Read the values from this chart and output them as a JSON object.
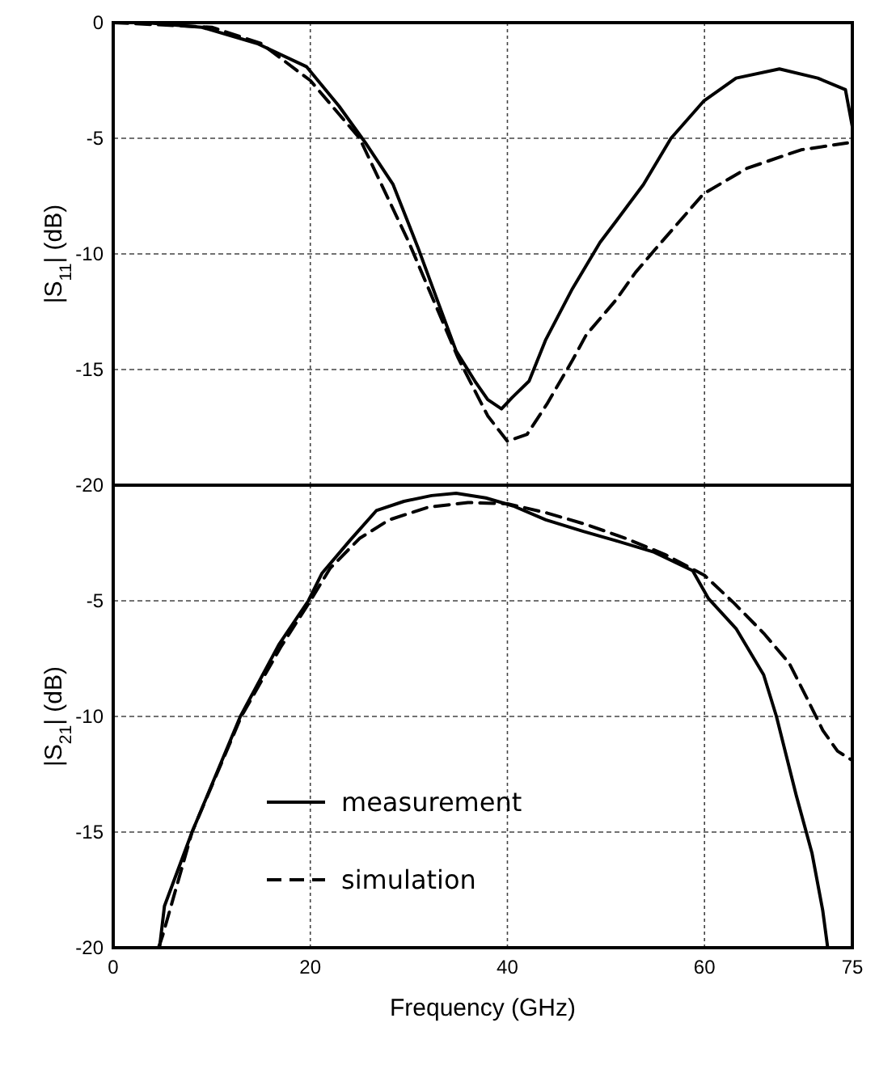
{
  "chart_data": [
    {
      "type": "line",
      "ylabel": "|S$_{11}$| (dB)",
      "xlim": [
        0,
        75
      ],
      "xticks": [
        {
          "value": 0,
          "label": null
        },
        {
          "value": 20,
          "label": null
        },
        {
          "value": 40,
          "label": null
        },
        {
          "value": 60,
          "label": null
        },
        {
          "value": 75,
          "label": null
        }
      ],
      "ylim": [
        -20,
        0
      ],
      "yticks": [
        0,
        -5,
        -10,
        -15,
        -20
      ],
      "grid": true,
      "tick_labels": "y",
      "legend": false,
      "series": [
        {
          "color": "#000000",
          "line_style": "solid",
          "x": [
            3.3,
            9,
            14.6,
            19.6,
            22.9,
            25.6,
            28.4,
            30.9,
            32.8,
            34.8,
            36.7,
            38,
            39.4,
            40.5,
            42.2,
            43.9,
            46.6,
            49.4,
            51,
            53.8,
            56.6,
            59.9,
            63.2,
            67.6,
            71.5,
            74.3,
            75
          ],
          "values": [
            0,
            -0.2,
            -0.9,
            -1.9,
            -3.6,
            -5.2,
            -7,
            -9.7,
            -11.9,
            -14.2,
            -15.5,
            -16.3,
            -16.7,
            -16.2,
            -15.5,
            -13.7,
            -11.5,
            -9.5,
            -8.6,
            -7,
            -5,
            -3.4,
            -2.4,
            -2,
            -2.4,
            -2.9,
            -4.5
          ]
        },
        {
          "color": "#000000",
          "line_style": "dashed",
          "x": [
            0,
            10,
            15,
            20,
            25,
            30,
            35,
            38,
            40,
            42,
            44,
            46.6,
            48,
            51,
            53,
            55,
            59.9,
            64.3,
            69.8,
            74.5
          ],
          "values": [
            0,
            -0.2,
            -0.9,
            -2.5,
            -5,
            -9.5,
            -14.5,
            -17,
            -18.1,
            -17.8,
            -16.5,
            -14.6,
            -13.5,
            -12,
            -10.8,
            -9.8,
            -7.4,
            -6.3,
            -5.5,
            -5.2
          ]
        }
      ]
    },
    {
      "type": "line",
      "xlabel": "Frequency (GHz)",
      "ylabel": "|S$_{21}$| (dB)",
      "xlim": [
        0,
        75
      ],
      "xticks": [
        0,
        20,
        40,
        60,
        75
      ],
      "ylim": [
        -20,
        0
      ],
      "yticks": [
        {
          "value": 0,
          "label": null
        },
        -5,
        -10,
        -15,
        -20
      ],
      "grid": true,
      "legend": "bottom left",
      "series": [
        {
          "name": "measurement",
          "color": "#000000",
          "line_style": "solid",
          "x": [
            4.7,
            5.2,
            8,
            12.9,
            16.8,
            19.8,
            21.2,
            24,
            26.7,
            29.5,
            32.3,
            34.8,
            37.8,
            40.6,
            43.9,
            47.7,
            51,
            54.9,
            58.8,
            60.4,
            63.2,
            66,
            67.3,
            69.3,
            70.9,
            72,
            72.5
          ],
          "values": [
            -20,
            -18.2,
            -15,
            -10,
            -6.9,
            -5,
            -3.8,
            -2.4,
            -1.1,
            -0.7,
            -0.45,
            -0.35,
            -0.55,
            -0.9,
            -1.5,
            -2,
            -2.4,
            -2.9,
            -3.7,
            -4.9,
            -6.2,
            -8.2,
            -10,
            -13.4,
            -15.9,
            -18.4,
            -20
          ]
        },
        {
          "name": "simulation",
          "color": "#000000",
          "line_style": "dashed",
          "x": [
            4.6,
            5,
            8,
            13,
            17,
            20,
            22,
            25,
            28,
            32,
            36,
            40,
            44,
            48,
            52,
            56,
            60,
            63,
            66,
            68.6,
            70.5,
            72,
            73.5,
            75
          ],
          "values": [
            -20,
            -19.5,
            -15,
            -10,
            -7,
            -5,
            -3.6,
            -2.3,
            -1.5,
            -0.95,
            -0.75,
            -0.8,
            -1.2,
            -1.7,
            -2.3,
            -3,
            -3.9,
            -5.1,
            -6.4,
            -7.7,
            -9.3,
            -10.6,
            -11.5,
            -11.9
          ]
        }
      ]
    }
  ]
}
